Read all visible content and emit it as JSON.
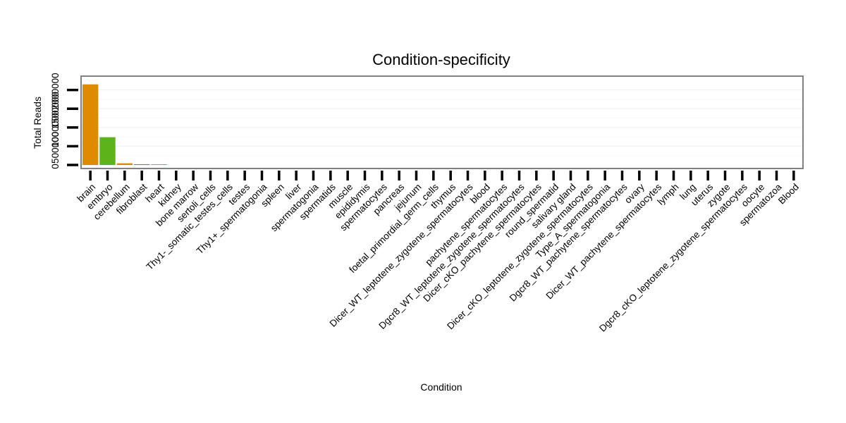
{
  "chart_data": {
    "type": "bar",
    "title": "Condition-specificity",
    "xlabel": "Condition",
    "ylabel": "Total Reads",
    "y_tick_labels": [
      "0",
      "500000",
      "1000000",
      "1500000",
      "2000000"
    ],
    "y_ticks": [
      0,
      500000,
      1000000,
      1500000,
      2000000
    ],
    "ylim": [
      0,
      2200000
    ],
    "grid": true,
    "categories": [
      "brain",
      "embryo",
      "cerebellum",
      "fibroblast",
      "heart",
      "kidney",
      "bone marrow",
      "sertoli_cells",
      "Thy1-_somatic_testes_cells",
      "testes",
      "Thy1+_spermatogonia",
      "spleen",
      "liver",
      "spermatogonia",
      "spermatids",
      "muscle",
      "epididymis",
      "spermatocytes",
      "pancreas",
      "jejunum",
      "foetal_primordial_germ_cells",
      "thymus",
      "Dicer_WT_leptotene_zygotene_spermatocytes",
      "blood",
      "pachytene_spermatocytes",
      "Dgcr8_WT_leptotene_zygotene_spermatocytes",
      "Dicer_cKO_pachytene_spermatocytes",
      "round_spermatid",
      "salivary gland",
      "Dicer_cKO_leptotene_zygotene_spermatocytes",
      "Type_A_spermatogonia",
      "Dgcr8_WT_pachytene_spermatocytes",
      "ovary",
      "Dicer_WT_pachytene_spermatocytes",
      "lymph",
      "lung",
      "uterus",
      "zygote",
      "Dgcr8_cKO_leptotene_zygotene_spermatocytes",
      "oocyte",
      "spermatozoa",
      "Blood"
    ],
    "values": [
      2150000,
      740000,
      45000,
      20000,
      15000,
      0,
      0,
      0,
      0,
      0,
      0,
      0,
      0,
      0,
      0,
      0,
      0,
      0,
      0,
      0,
      0,
      0,
      0,
      0,
      0,
      0,
      0,
      0,
      0,
      0,
      0,
      0,
      0,
      0,
      0,
      0,
      0,
      0,
      0,
      0,
      0,
      0
    ],
    "bar_colors": [
      "#E08A00",
      "#5DB418",
      "#E08A00",
      "#2E9E66",
      "#2EA877"
    ]
  }
}
